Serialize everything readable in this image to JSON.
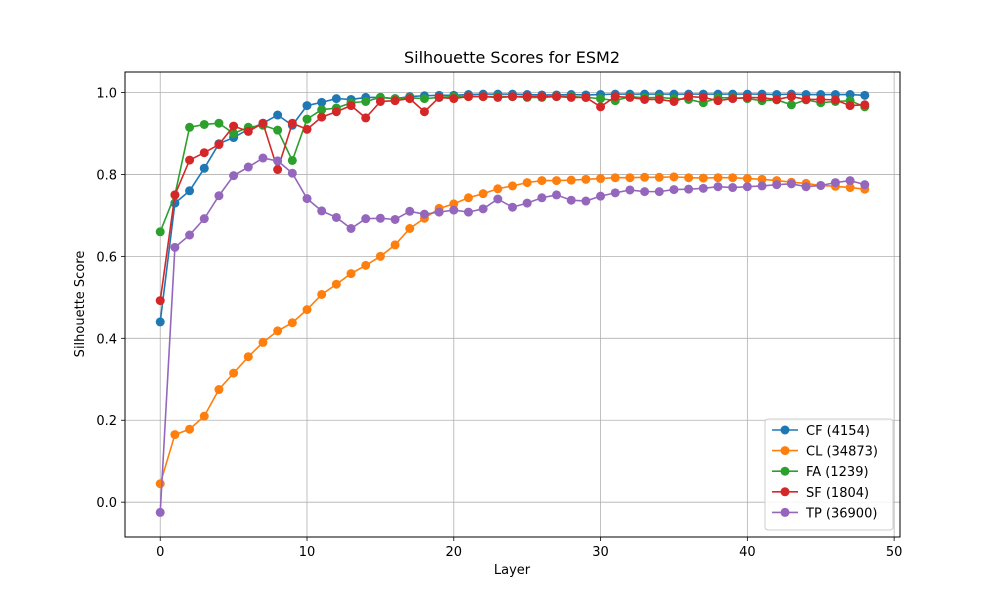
{
  "chart_data": {
    "type": "line",
    "title": "Silhouette Scores for ESM2",
    "xlabel": "Layer",
    "ylabel": "Silhouette Score",
    "xlim": [
      -2.4,
      50.4
    ],
    "ylim": [
      -0.085,
      1.05
    ],
    "xticks": [
      0,
      10,
      20,
      30,
      40,
      50
    ],
    "yticks": [
      0.0,
      0.2,
      0.4,
      0.6,
      0.8,
      1.0
    ],
    "xtick_labels": [
      "0",
      "10",
      "20",
      "30",
      "40",
      "50"
    ],
    "ytick_labels": [
      "0.0",
      "0.2",
      "0.4",
      "0.6",
      "0.8",
      "1.0"
    ],
    "grid": true,
    "legend_position": "lower-right",
    "x": [
      0,
      1,
      2,
      3,
      4,
      5,
      6,
      7,
      8,
      9,
      10,
      11,
      12,
      13,
      14,
      15,
      16,
      17,
      18,
      19,
      20,
      21,
      22,
      23,
      24,
      25,
      26,
      27,
      28,
      29,
      30,
      31,
      32,
      33,
      34,
      35,
      36,
      37,
      38,
      39,
      40,
      41,
      42,
      43,
      44,
      45,
      46,
      47,
      48
    ],
    "series": [
      {
        "name": "CF (4154)",
        "color": "#1f77b4",
        "values": [
          0.44,
          0.73,
          0.76,
          0.815,
          0.875,
          0.89,
          0.91,
          0.925,
          0.945,
          0.92,
          0.968,
          0.976,
          0.985,
          0.983,
          0.988,
          0.988,
          0.985,
          0.99,
          0.992,
          0.993,
          0.993,
          0.995,
          0.996,
          0.996,
          0.996,
          0.995,
          0.994,
          0.994,
          0.995,
          0.994,
          0.995,
          0.996,
          0.996,
          0.996,
          0.996,
          0.996,
          0.996,
          0.996,
          0.996,
          0.996,
          0.996,
          0.996,
          0.995,
          0.996,
          0.995,
          0.995,
          0.995,
          0.995,
          0.993
        ]
      },
      {
        "name": "CL (34873)",
        "color": "#ff7f0e",
        "values": [
          0.045,
          0.165,
          0.178,
          0.21,
          0.275,
          0.315,
          0.355,
          0.39,
          0.418,
          0.438,
          0.47,
          0.507,
          0.532,
          0.558,
          0.578,
          0.6,
          0.628,
          0.668,
          0.693,
          0.717,
          0.728,
          0.743,
          0.753,
          0.765,
          0.772,
          0.78,
          0.785,
          0.785,
          0.786,
          0.788,
          0.79,
          0.792,
          0.792,
          0.793,
          0.793,
          0.794,
          0.792,
          0.791,
          0.792,
          0.792,
          0.79,
          0.788,
          0.785,
          0.781,
          0.778,
          0.773,
          0.771,
          0.768,
          0.764
        ]
      },
      {
        "name": "FA (1239)",
        "color": "#2ca02c",
        "values": [
          0.66,
          0.75,
          0.915,
          0.922,
          0.925,
          0.9,
          0.915,
          0.92,
          0.908,
          0.834,
          0.935,
          0.958,
          0.962,
          0.975,
          0.978,
          0.988,
          0.985,
          0.987,
          0.985,
          0.988,
          0.99,
          0.99,
          0.99,
          0.99,
          0.99,
          0.988,
          0.988,
          0.99,
          0.99,
          0.988,
          0.985,
          0.98,
          0.99,
          0.987,
          0.988,
          0.985,
          0.983,
          0.975,
          0.987,
          0.987,
          0.985,
          0.98,
          0.982,
          0.97,
          0.982,
          0.975,
          0.978,
          0.98,
          0.965
        ]
      },
      {
        "name": "SF (1804)",
        "color": "#d62728",
        "values": [
          0.492,
          0.75,
          0.835,
          0.853,
          0.873,
          0.918,
          0.905,
          0.925,
          0.812,
          0.925,
          0.91,
          0.94,
          0.953,
          0.968,
          0.938,
          0.978,
          0.98,
          0.985,
          0.953,
          0.988,
          0.985,
          0.99,
          0.99,
          0.988,
          0.99,
          0.99,
          0.99,
          0.99,
          0.988,
          0.988,
          0.965,
          0.99,
          0.988,
          0.983,
          0.983,
          0.978,
          0.99,
          0.988,
          0.98,
          0.985,
          0.988,
          0.987,
          0.983,
          0.99,
          0.983,
          0.983,
          0.982,
          0.968,
          0.97
        ]
      },
      {
        "name": "TP (36900)",
        "color": "#9467bd",
        "values": [
          -0.025,
          0.622,
          0.652,
          0.692,
          0.748,
          0.797,
          0.818,
          0.84,
          0.833,
          0.803,
          0.741,
          0.711,
          0.695,
          0.668,
          0.692,
          0.693,
          0.69,
          0.71,
          0.703,
          0.708,
          0.713,
          0.708,
          0.716,
          0.74,
          0.72,
          0.73,
          0.743,
          0.75,
          0.737,
          0.735,
          0.747,
          0.755,
          0.762,
          0.758,
          0.758,
          0.763,
          0.764,
          0.766,
          0.77,
          0.768,
          0.77,
          0.772,
          0.775,
          0.777,
          0.77,
          0.773,
          0.78,
          0.785,
          0.775
        ]
      }
    ]
  }
}
